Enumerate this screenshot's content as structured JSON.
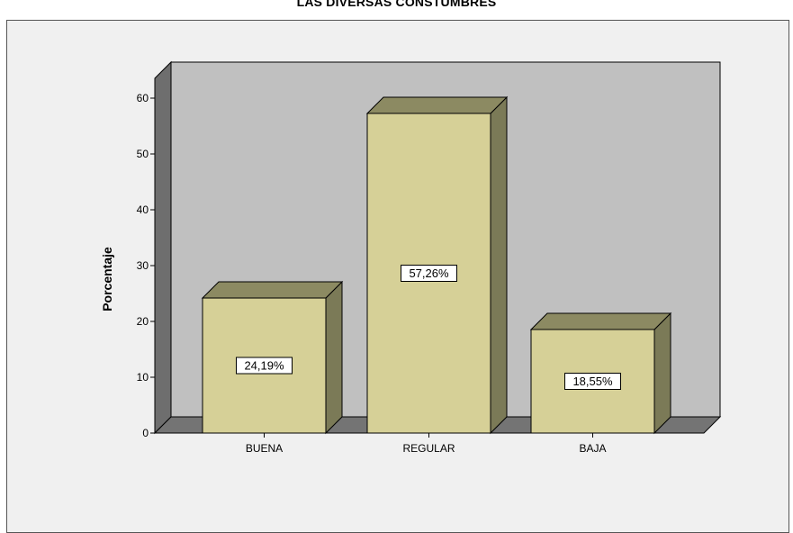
{
  "chart_data": {
    "type": "bar",
    "title": "LAS DIVERSAS CONSTUMBRES",
    "xlabel": "",
    "ylabel": "Porcentaje",
    "categories": [
      "BUENA",
      "REGULAR",
      "BAJA"
    ],
    "values": [
      24.19,
      57.26,
      18.55
    ],
    "data_labels": [
      "24,19%",
      "57,26%",
      "18,55%"
    ],
    "ylim": [
      0,
      60
    ],
    "yticks": [
      0,
      10,
      20,
      30,
      40,
      50,
      60
    ],
    "three_d": true,
    "grid": false,
    "legend": "none"
  },
  "colors": {
    "bar_front": "#d6d097",
    "bar_side": "#7b7a57",
    "bar_top": "#8c8a62",
    "back_wall": "#c0c0c0",
    "left_wall": "#6e6e6e",
    "floor": "#747474",
    "chart_background": "#f0f0f0",
    "label_box": "#ffffff"
  }
}
